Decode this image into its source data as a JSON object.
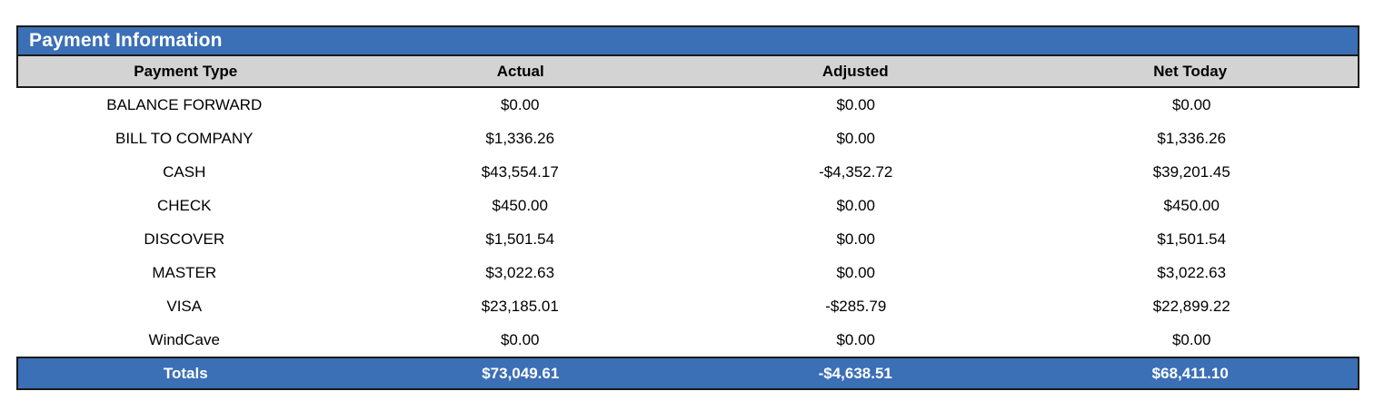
{
  "title": "Payment Information",
  "columns": [
    "Payment Type",
    "Actual",
    "Adjusted",
    "Net Today"
  ],
  "rows": [
    {
      "type": "BALANCE FORWARD",
      "actual": "$0.00",
      "adjusted": "$0.00",
      "net": "$0.00"
    },
    {
      "type": "BILL TO COMPANY",
      "actual": "$1,336.26",
      "adjusted": "$0.00",
      "net": "$1,336.26"
    },
    {
      "type": "CASH",
      "actual": "$43,554.17",
      "adjusted": "-$4,352.72",
      "net": "$39,201.45"
    },
    {
      "type": "CHECK",
      "actual": "$450.00",
      "adjusted": "$0.00",
      "net": "$450.00"
    },
    {
      "type": "DISCOVER",
      "actual": "$1,501.54",
      "adjusted": "$0.00",
      "net": "$1,501.54"
    },
    {
      "type": "MASTER",
      "actual": "$3,022.63",
      "adjusted": "$0.00",
      "net": "$3,022.63"
    },
    {
      "type": "VISA",
      "actual": "$23,185.01",
      "adjusted": "-$285.79",
      "net": "$22,899.22"
    },
    {
      "type": "WindCave",
      "actual": "$0.00",
      "adjusted": "$0.00",
      "net": "$0.00"
    }
  ],
  "totals": {
    "label": "Totals",
    "actual": "$73,049.61",
    "adjusted": "-$4,638.51",
    "net": "$68,411.10"
  },
  "colors": {
    "accent_blue": "#3b6fb6",
    "header_gray": "#d3d3d3",
    "border_black": "#1a1a1a",
    "title_text": "#ffffff",
    "totals_text": "#ffffff"
  }
}
